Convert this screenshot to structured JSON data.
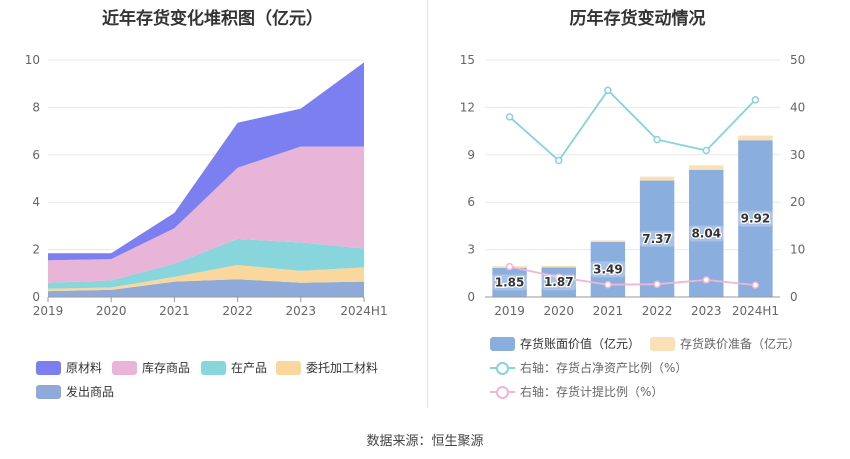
{
  "source": "数据来源：恒生聚源",
  "chart_data": [
    {
      "type": "area",
      "stacked": true,
      "title": "近年存货变化堆积图（亿元）",
      "categories": [
        "2019",
        "2020",
        "2021",
        "2022",
        "2023",
        "2024H1"
      ],
      "ylim": [
        0,
        10
      ],
      "yticks": [
        "0",
        "2",
        "4",
        "6",
        "8",
        "10"
      ],
      "grid": true,
      "legend_position": "bottom",
      "series": [
        {
          "name": "原材料",
          "color": "#7b7ff0",
          "values": [
            0.3,
            0.25,
            0.65,
            1.9,
            1.6,
            3.55
          ]
        },
        {
          "name": "库存商品",
          "color": "#e8b4d8",
          "values": [
            0.95,
            0.9,
            1.5,
            3.0,
            4.05,
            4.3
          ]
        },
        {
          "name": "在产品",
          "color": "#88d6dc",
          "values": [
            0.25,
            0.3,
            0.55,
            1.1,
            1.2,
            0.8
          ]
        },
        {
          "name": "委托加工材料",
          "color": "#f9d79d",
          "values": [
            0.1,
            0.1,
            0.2,
            0.6,
            0.5,
            0.6
          ]
        },
        {
          "name": "发出商品",
          "color": "#8fa9d9",
          "values": [
            0.25,
            0.3,
            0.65,
            0.75,
            0.6,
            0.65
          ]
        }
      ]
    },
    {
      "type": "bar",
      "title": "历年存货变动情况",
      "categories": [
        "2019",
        "2020",
        "2021",
        "2022",
        "2023",
        "2024H1"
      ],
      "ylim_left": [
        0,
        15
      ],
      "yticks_left": [
        "0",
        "3",
        "6",
        "9",
        "12",
        "15"
      ],
      "ylim_right": [
        0,
        50
      ],
      "yticks_right": [
        "0",
        "10",
        "20",
        "30",
        "40",
        "50"
      ],
      "grid": true,
      "legend_position": "bottom",
      "series": [
        {
          "name": "存货账面价值（亿元）",
          "kind": "bar",
          "axis": "left",
          "color": "#8aaede",
          "values": [
            1.85,
            1.87,
            3.49,
            7.37,
            8.04,
            9.92
          ],
          "labels": [
            "1.85",
            "1.87",
            "3.49",
            "7.37",
            "8.04",
            "9.92"
          ]
        },
        {
          "name": "存货跌价准备（亿元）",
          "kind": "bar-stack",
          "axis": "left",
          "color": "#fbe0b6",
          "values": [
            0.1,
            0.1,
            0.1,
            0.25,
            0.3,
            0.3
          ]
        },
        {
          "name": "右轴：存货占净资产比例（%）",
          "kind": "line",
          "axis": "right",
          "color": "#85d3dc",
          "values": [
            38.0,
            28.8,
            43.6,
            33.2,
            30.9,
            41.6
          ]
        },
        {
          "name": "右轴：存货计提比例（%）",
          "kind": "line",
          "axis": "right",
          "color": "#f0b6d2",
          "values": [
            6.4,
            4.2,
            2.6,
            2.7,
            3.6,
            2.5
          ]
        }
      ]
    }
  ]
}
